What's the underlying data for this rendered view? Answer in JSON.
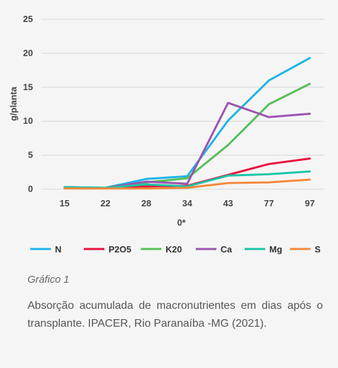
{
  "chart_data": {
    "type": "line",
    "categories": [
      "15",
      "22",
      "28",
      "34",
      "43",
      "77",
      "97"
    ],
    "xlabel": "0*",
    "ylabel": "g/planta",
    "ylim": [
      0,
      25
    ],
    "yticks": [
      0,
      5,
      10,
      15,
      20,
      25
    ],
    "grid": true,
    "legend_position": "bottom",
    "series": [
      {
        "name": "N",
        "color": "#1EB4E6",
        "values": [
          0.3,
          0.2,
          1.5,
          1.9,
          10.1,
          16.0,
          19.3
        ]
      },
      {
        "name": "P2O5",
        "color": "#E8103C",
        "values": [
          0.1,
          0.1,
          0.4,
          0.5,
          2.1,
          3.7,
          4.5
        ]
      },
      {
        "name": "K20",
        "color": "#56BF5A",
        "values": [
          0.2,
          0.2,
          1.0,
          1.6,
          6.5,
          12.5,
          15.5
        ]
      },
      {
        "name": "Ca",
        "color": "#9A55B0",
        "values": [
          0.2,
          0.2,
          1.1,
          0.8,
          12.7,
          10.6,
          11.1
        ]
      },
      {
        "name": "Mg",
        "color": "#19C4A8",
        "values": [
          0.3,
          0.2,
          0.7,
          0.4,
          2.0,
          2.2,
          2.6
        ]
      },
      {
        "name": "S",
        "color": "#F5893A",
        "values": [
          0.1,
          0.1,
          0.1,
          0.2,
          0.9,
          1.0,
          1.4
        ]
      }
    ]
  },
  "caption": {
    "label": "Gráfico 1",
    "text": "Absorção acumulada de macronutrientes em dias após o transplante. IPACER, Rio Paranaíba -MG (2021)."
  }
}
